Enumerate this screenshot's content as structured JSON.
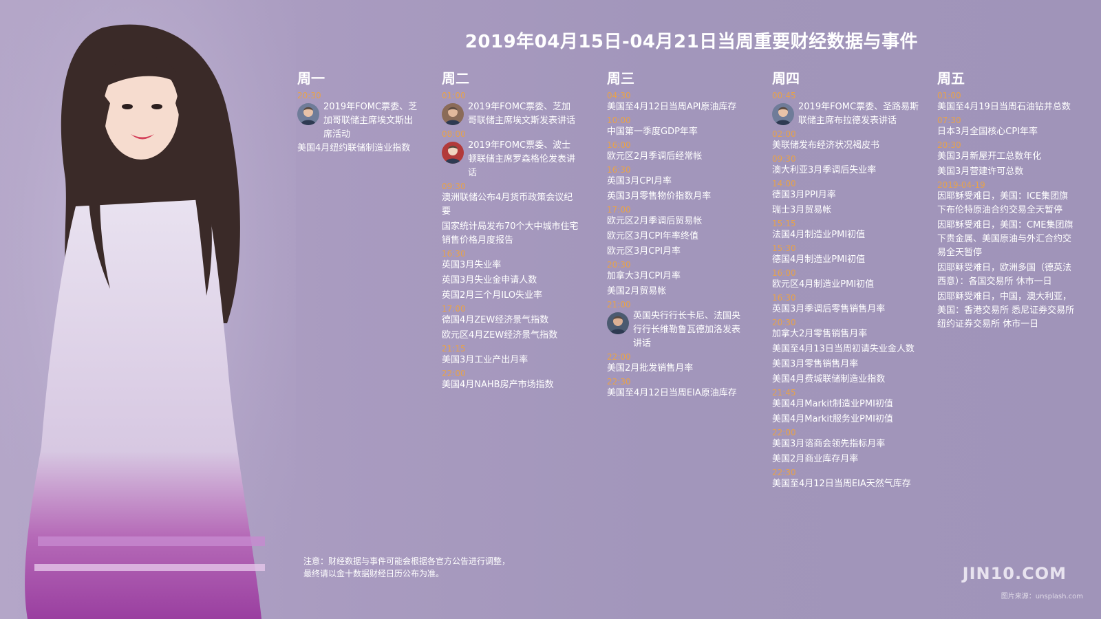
{
  "title": "2019年04月15日-04月21日当周重要财经数据与事件",
  "days": [
    {
      "label": "周一",
      "groups": [
        {
          "time": "20:30",
          "avatar": true,
          "items": [
            "2019年FOMC票委、芝加哥联储主席埃文斯出席活动"
          ]
        },
        {
          "time": "",
          "avatar": false,
          "items": [
            "美国4月纽约联储制造业指数"
          ]
        }
      ]
    },
    {
      "label": "周二",
      "groups": [
        {
          "time": "01:00",
          "avatar": true,
          "items": [
            "2019年FOMC票委、芝加哥联储主席埃文斯发表讲话"
          ]
        },
        {
          "time": "08:00",
          "avatar": true,
          "items": [
            "2019年FOMC票委、波士顿联储主席罗森格伦发表讲话"
          ]
        },
        {
          "time": "09:30",
          "avatar": false,
          "items": [
            "澳洲联储公布4月货币政策会议纪要",
            "国家统计局发布70个大中城市住宅销售价格月度报告"
          ]
        },
        {
          "time": "16:30",
          "avatar": false,
          "items": [
            "英国3月失业率",
            "英国3月失业金申请人数",
            "英国2月三个月ILO失业率"
          ]
        },
        {
          "time": "17:00",
          "avatar": false,
          "items": [
            "德国4月ZEW经济景气指数",
            "欧元区4月ZEW经济景气指数"
          ]
        },
        {
          "time": "21:15",
          "avatar": false,
          "items": [
            "美国3月工业产出月率"
          ]
        },
        {
          "time": "22:00",
          "avatar": false,
          "items": [
            "美国4月NAHB房产市场指数"
          ]
        }
      ]
    },
    {
      "label": "周三",
      "groups": [
        {
          "time": "04:30",
          "avatar": false,
          "items": [
            "美国至4月12日当周API原油库存"
          ]
        },
        {
          "time": "10:00",
          "avatar": false,
          "items": [
            "中国第一季度GDP年率"
          ]
        },
        {
          "time": "16:00",
          "avatar": false,
          "items": [
            "欧元区2月季调后经常帐"
          ]
        },
        {
          "time": "16:30",
          "avatar": false,
          "items": [
            "英国3月CPI月率",
            "英国3月零售物价指数月率"
          ]
        },
        {
          "time": "17:00",
          "avatar": false,
          "items": [
            "欧元区2月季调后贸易帐",
            "欧元区3月CPI年率终值",
            "欧元区3月CPI月率"
          ]
        },
        {
          "time": "20:30",
          "avatar": false,
          "items": [
            "加拿大3月CPI月率",
            "美国2月贸易帐"
          ]
        },
        {
          "time": "21:00",
          "avatar": true,
          "items": [
            "英国央行行长卡尼、法国央行行长维勒鲁瓦德加洛发表讲话"
          ]
        },
        {
          "time": "22:00",
          "avatar": false,
          "items": [
            "美国2月批发销售月率"
          ]
        },
        {
          "time": "22:30",
          "avatar": false,
          "items": [
            "美国至4月12日当周EIA原油库存"
          ]
        }
      ]
    },
    {
      "label": "周四",
      "groups": [
        {
          "time": "00:45",
          "avatar": true,
          "items": [
            "2019年FOMC票委、圣路易斯联储主席布拉德发表讲话"
          ]
        },
        {
          "time": "02:00",
          "avatar": false,
          "items": [
            "美联储发布经济状况褐皮书"
          ]
        },
        {
          "time": "09:30",
          "avatar": false,
          "items": [
            "澳大利亚3月季调后失业率"
          ]
        },
        {
          "time": "14:00",
          "avatar": false,
          "items": [
            "德国3月PPI月率",
            "瑞士3月贸易帐"
          ]
        },
        {
          "time": "15:15",
          "avatar": false,
          "items": [
            "法国4月制造业PMI初值"
          ]
        },
        {
          "time": "15:30",
          "avatar": false,
          "items": [
            "德国4月制造业PMI初值"
          ]
        },
        {
          "time": "16:00",
          "avatar": false,
          "items": [
            "欧元区4月制造业PMI初值"
          ]
        },
        {
          "time": "16:30",
          "avatar": false,
          "items": [
            "英国3月季调后零售销售月率"
          ]
        },
        {
          "time": "20:30",
          "avatar": false,
          "items": [
            "加拿大2月零售销售月率",
            "美国至4月13日当周初请失业金人数",
            "美国3月零售销售月率",
            "美国4月费城联储制造业指数"
          ]
        },
        {
          "time": "21:45",
          "avatar": false,
          "items": [
            "美国4月Markit制造业PMI初值",
            "美国4月Markit服务业PMI初值"
          ]
        },
        {
          "time": "22:00",
          "avatar": false,
          "items": [
            "美国3月谘商会领先指标月率",
            "美国2月商业库存月率"
          ]
        },
        {
          "time": "22:30",
          "avatar": false,
          "items": [
            "美国至4月12日当周EIA天然气库存"
          ]
        }
      ]
    },
    {
      "label": "周五",
      "groups": [
        {
          "time": "01:00",
          "avatar": false,
          "items": [
            "美国至4月19日当周石油钻井总数"
          ]
        },
        {
          "time": "07:30",
          "avatar": false,
          "items": [
            "日本3月全国核心CPI年率"
          ]
        },
        {
          "time": "20:30",
          "avatar": false,
          "items": [
            "美国3月新屋开工总数年化",
            "美国3月营建许可总数"
          ]
        },
        {
          "time": "2019-04-19",
          "avatar": false,
          "items": [
            "因耶稣受难日，美国：ICE集团旗下布伦特原油合约交易全天暂停",
            "因耶稣受难日，美国：CME集团旗下贵金属、美国原油与外汇合约交易全天暂停",
            "因耶稣受难日，欧洲多国（德英法西意）：各国交易所 休市一日",
            "因耶稣受难日，中国，澳大利亚，美国：香港交易所  悉尼证券交易所  纽约证券交易所 休市一日"
          ]
        }
      ]
    }
  ],
  "note": {
    "line1": "注意：财经数据与事件可能会根据各官方公告进行调整，",
    "line2": "最终请以金十数据财经日历公布为准。"
  },
  "logo": "JIN10.COM",
  "credit": "图片来源：unsplash.com"
}
